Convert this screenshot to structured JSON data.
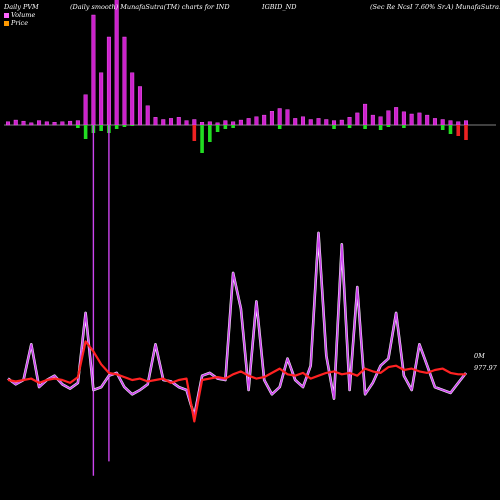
{
  "header": {
    "left": "Daily PVM",
    "center": "(Daily smooth) MunafaSutra(TM) charts for IND",
    "ticker": "IGBID_ND",
    "right": "(Sec Re  NcsI 7.60% Sr.A) MunafaSutra.com"
  },
  "legend": [
    {
      "label": "Volume",
      "color": "#ff66ff"
    },
    {
      "label": "Price",
      "color": "#ff9900"
    }
  ],
  "right_labels": {
    "top": "0M",
    "bottom": "977.97"
  },
  "colors": {
    "bar": "#cc22cc",
    "up": "#22dd22",
    "down": "#ee2222",
    "price": "#ff2222",
    "volume_line": "#cc44ee",
    "zero_line": "#ffffff"
  },
  "chart_data": {
    "type": "bar",
    "days": 60,
    "volume_bars": [
      6,
      9,
      7,
      4,
      8,
      6,
      5,
      6,
      7,
      8,
      55,
      200,
      95,
      160,
      230,
      160,
      95,
      70,
      35,
      14,
      10,
      12,
      14,
      8,
      10,
      5,
      6,
      4,
      8,
      6,
      9,
      12,
      15,
      18,
      25,
      30,
      28,
      12,
      15,
      10,
      12,
      10,
      8,
      9,
      14,
      22,
      38,
      18,
      15,
      26,
      32,
      24,
      20,
      22,
      18,
      12,
      10,
      8,
      6,
      8
    ],
    "color_bars": [
      0,
      0,
      0,
      0,
      0,
      0,
      0,
      0,
      0,
      -3,
      -14,
      -8,
      -6,
      -8,
      -4,
      -2,
      -1,
      0,
      0,
      0,
      0,
      0,
      0,
      0,
      -16,
      -28,
      -17,
      -7,
      -4,
      -3,
      0,
      0,
      0,
      0,
      0,
      -4,
      0,
      0,
      0,
      0,
      0,
      0,
      -4,
      0,
      -3,
      0,
      -4,
      0,
      -5,
      -2,
      0,
      -3,
      0,
      0,
      0,
      0,
      -5,
      -9,
      -11,
      -15
    ],
    "colorbar_colors": [
      "",
      "",
      "",
      "",
      "",
      "",
      "",
      "",
      "",
      "",
      "up",
      "up",
      "up",
      "up",
      "up",
      "up",
      "up",
      "",
      "",
      "",
      "",
      "",
      "",
      "",
      "down",
      "up",
      "up",
      "up",
      "up",
      "up",
      "",
      "",
      "",
      "",
      "",
      "up",
      "",
      "",
      "",
      "",
      "",
      "",
      "up",
      "",
      "up",
      "",
      "up",
      "",
      "up",
      "up",
      "",
      "up",
      "",
      "",
      "",
      "",
      "up",
      "up",
      "down",
      "down"
    ],
    "price": [
      975,
      974,
      975,
      976,
      973,
      975,
      976,
      975,
      973,
      977,
      1002,
      995,
      986,
      980,
      979,
      977,
      975,
      976,
      974,
      975,
      976,
      973,
      975,
      976,
      946,
      975,
      976,
      977,
      976,
      979,
      981,
      978,
      976,
      977,
      980,
      983,
      979,
      978,
      980,
      976,
      978,
      980,
      981,
      979,
      980,
      978,
      983,
      981,
      980,
      984,
      985,
      982,
      983,
      981,
      980,
      982,
      983,
      980,
      979,
      979
    ],
    "volume_line": [
      976,
      972,
      975,
      1000,
      970,
      975,
      978,
      972,
      969,
      973,
      1022,
      968,
      970,
      978,
      980,
      970,
      965,
      968,
      972,
      1000,
      975,
      974,
      970,
      968,
      950,
      978,
      980,
      976,
      975,
      1050,
      1025,
      968,
      1030,
      975,
      965,
      970,
      990,
      975,
      970,
      985,
      1078,
      992,
      962,
      1070,
      968,
      1040,
      965,
      973,
      985,
      990,
      1022,
      978,
      968,
      1000,
      985,
      970,
      968,
      966,
      973,
      980
    ],
    "price_min": 940,
    "price_max": 1080
  }
}
